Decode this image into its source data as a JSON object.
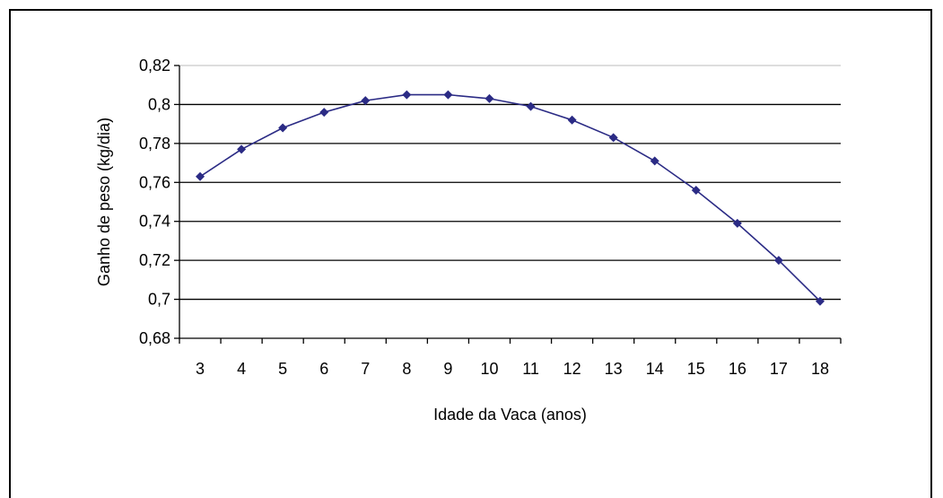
{
  "chart_data": {
    "type": "line",
    "title": "",
    "xlabel": "Idade da Vaca (anos)",
    "ylabel": "Ganho de peso (kg/dia)",
    "categories": [
      "3",
      "4",
      "5",
      "6",
      "7",
      "8",
      "9",
      "10",
      "11",
      "12",
      "13",
      "14",
      "15",
      "16",
      "17",
      "18"
    ],
    "series": [
      {
        "values": [
          0.763,
          0.777,
          0.788,
          0.796,
          0.802,
          0.805,
          0.805,
          0.803,
          0.799,
          0.792,
          0.783,
          0.771,
          0.756,
          0.739,
          0.72,
          0.699
        ]
      }
    ],
    "ylim": [
      0.68,
      0.82
    ],
    "yticks": [
      "0,68",
      "0,7",
      "0,72",
      "0,74",
      "0,76",
      "0,78",
      "0,8",
      "0,82"
    ],
    "grid": true,
    "legend": "none",
    "colors": {
      "line": "#2b2b85",
      "marker": "#2b2b85",
      "grid": "#000000"
    }
  }
}
